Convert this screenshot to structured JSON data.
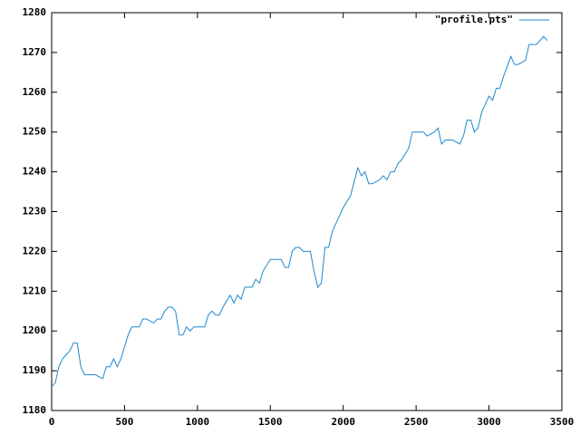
{
  "chart_data": {
    "type": "line",
    "legend": "top-right",
    "xlim": [
      0,
      3500
    ],
    "xticks": [
      0,
      500,
      1000,
      1500,
      2000,
      2500,
      3000,
      3500
    ],
    "ylim": [
      1180,
      1280
    ],
    "yticks": [
      1180,
      1190,
      1200,
      1210,
      1220,
      1230,
      1240,
      1250,
      1260,
      1270,
      1280
    ],
    "series": [
      {
        "name": "\"profile.pts\"",
        "color": "#1e8ad0",
        "x": [
          0,
          25,
          50,
          75,
          100,
          125,
          150,
          175,
          200,
          225,
          250,
          275,
          300,
          350,
          375,
          400,
          425,
          450,
          475,
          500,
          525,
          550,
          575,
          600,
          625,
          650,
          700,
          725,
          750,
          775,
          800,
          825,
          850,
          875,
          900,
          925,
          950,
          975,
          1025,
          1050,
          1075,
          1100,
          1125,
          1150,
          1175,
          1225,
          1250,
          1275,
          1300,
          1325,
          1375,
          1400,
          1425,
          1450,
          1500,
          1575,
          1600,
          1625,
          1650,
          1675,
          1700,
          1725,
          1775,
          1800,
          1825,
          1850,
          1875,
          1900,
          1925,
          1950,
          2000,
          2050,
          2100,
          2125,
          2150,
          2175,
          2200,
          2250,
          2275,
          2300,
          2325,
          2350,
          2375,
          2400,
          2450,
          2475,
          2525,
          2550,
          2575,
          2625,
          2650,
          2675,
          2700,
          2750,
          2800,
          2825,
          2850,
          2875,
          2900,
          2925,
          2950,
          3000,
          3025,
          3050,
          3075,
          3100,
          3150,
          3175,
          3200,
          3250,
          3275,
          3325,
          3375,
          3400
        ],
        "values": [
          1186,
          1187,
          1191,
          1193,
          1194,
          1195,
          1197,
          1197,
          1191,
          1189,
          1189,
          1189,
          1189,
          1188,
          1191,
          1191,
          1193,
          1191,
          1193,
          1196,
          1199,
          1201,
          1201,
          1201,
          1203,
          1203,
          1202,
          1203,
          1203,
          1205,
          1206,
          1206,
          1205,
          1199,
          1199,
          1201,
          1200,
          1201,
          1201,
          1201,
          1204,
          1205,
          1204,
          1204,
          1206,
          1209,
          1207,
          1209,
          1208,
          1211,
          1211,
          1213,
          1212,
          1215,
          1218,
          1218,
          1216,
          1216,
          1220,
          1221,
          1221,
          1220,
          1220,
          1215,
          1211,
          1212,
          1221,
          1221,
          1225,
          1227,
          1231,
          1234,
          1241,
          1239,
          1240,
          1237,
          1237,
          1238,
          1239,
          1238,
          1240,
          1240,
          1242,
          1243,
          1246,
          1250,
          1250,
          1250,
          1249,
          1250,
          1251,
          1247,
          1248,
          1248,
          1247,
          1249,
          1253,
          1253,
          1250,
          1251,
          1255,
          1259,
          1258,
          1261,
          1261,
          1264,
          1269,
          1267,
          1267,
          1268,
          1272,
          1272,
          1274,
          1273
        ]
      }
    ]
  }
}
